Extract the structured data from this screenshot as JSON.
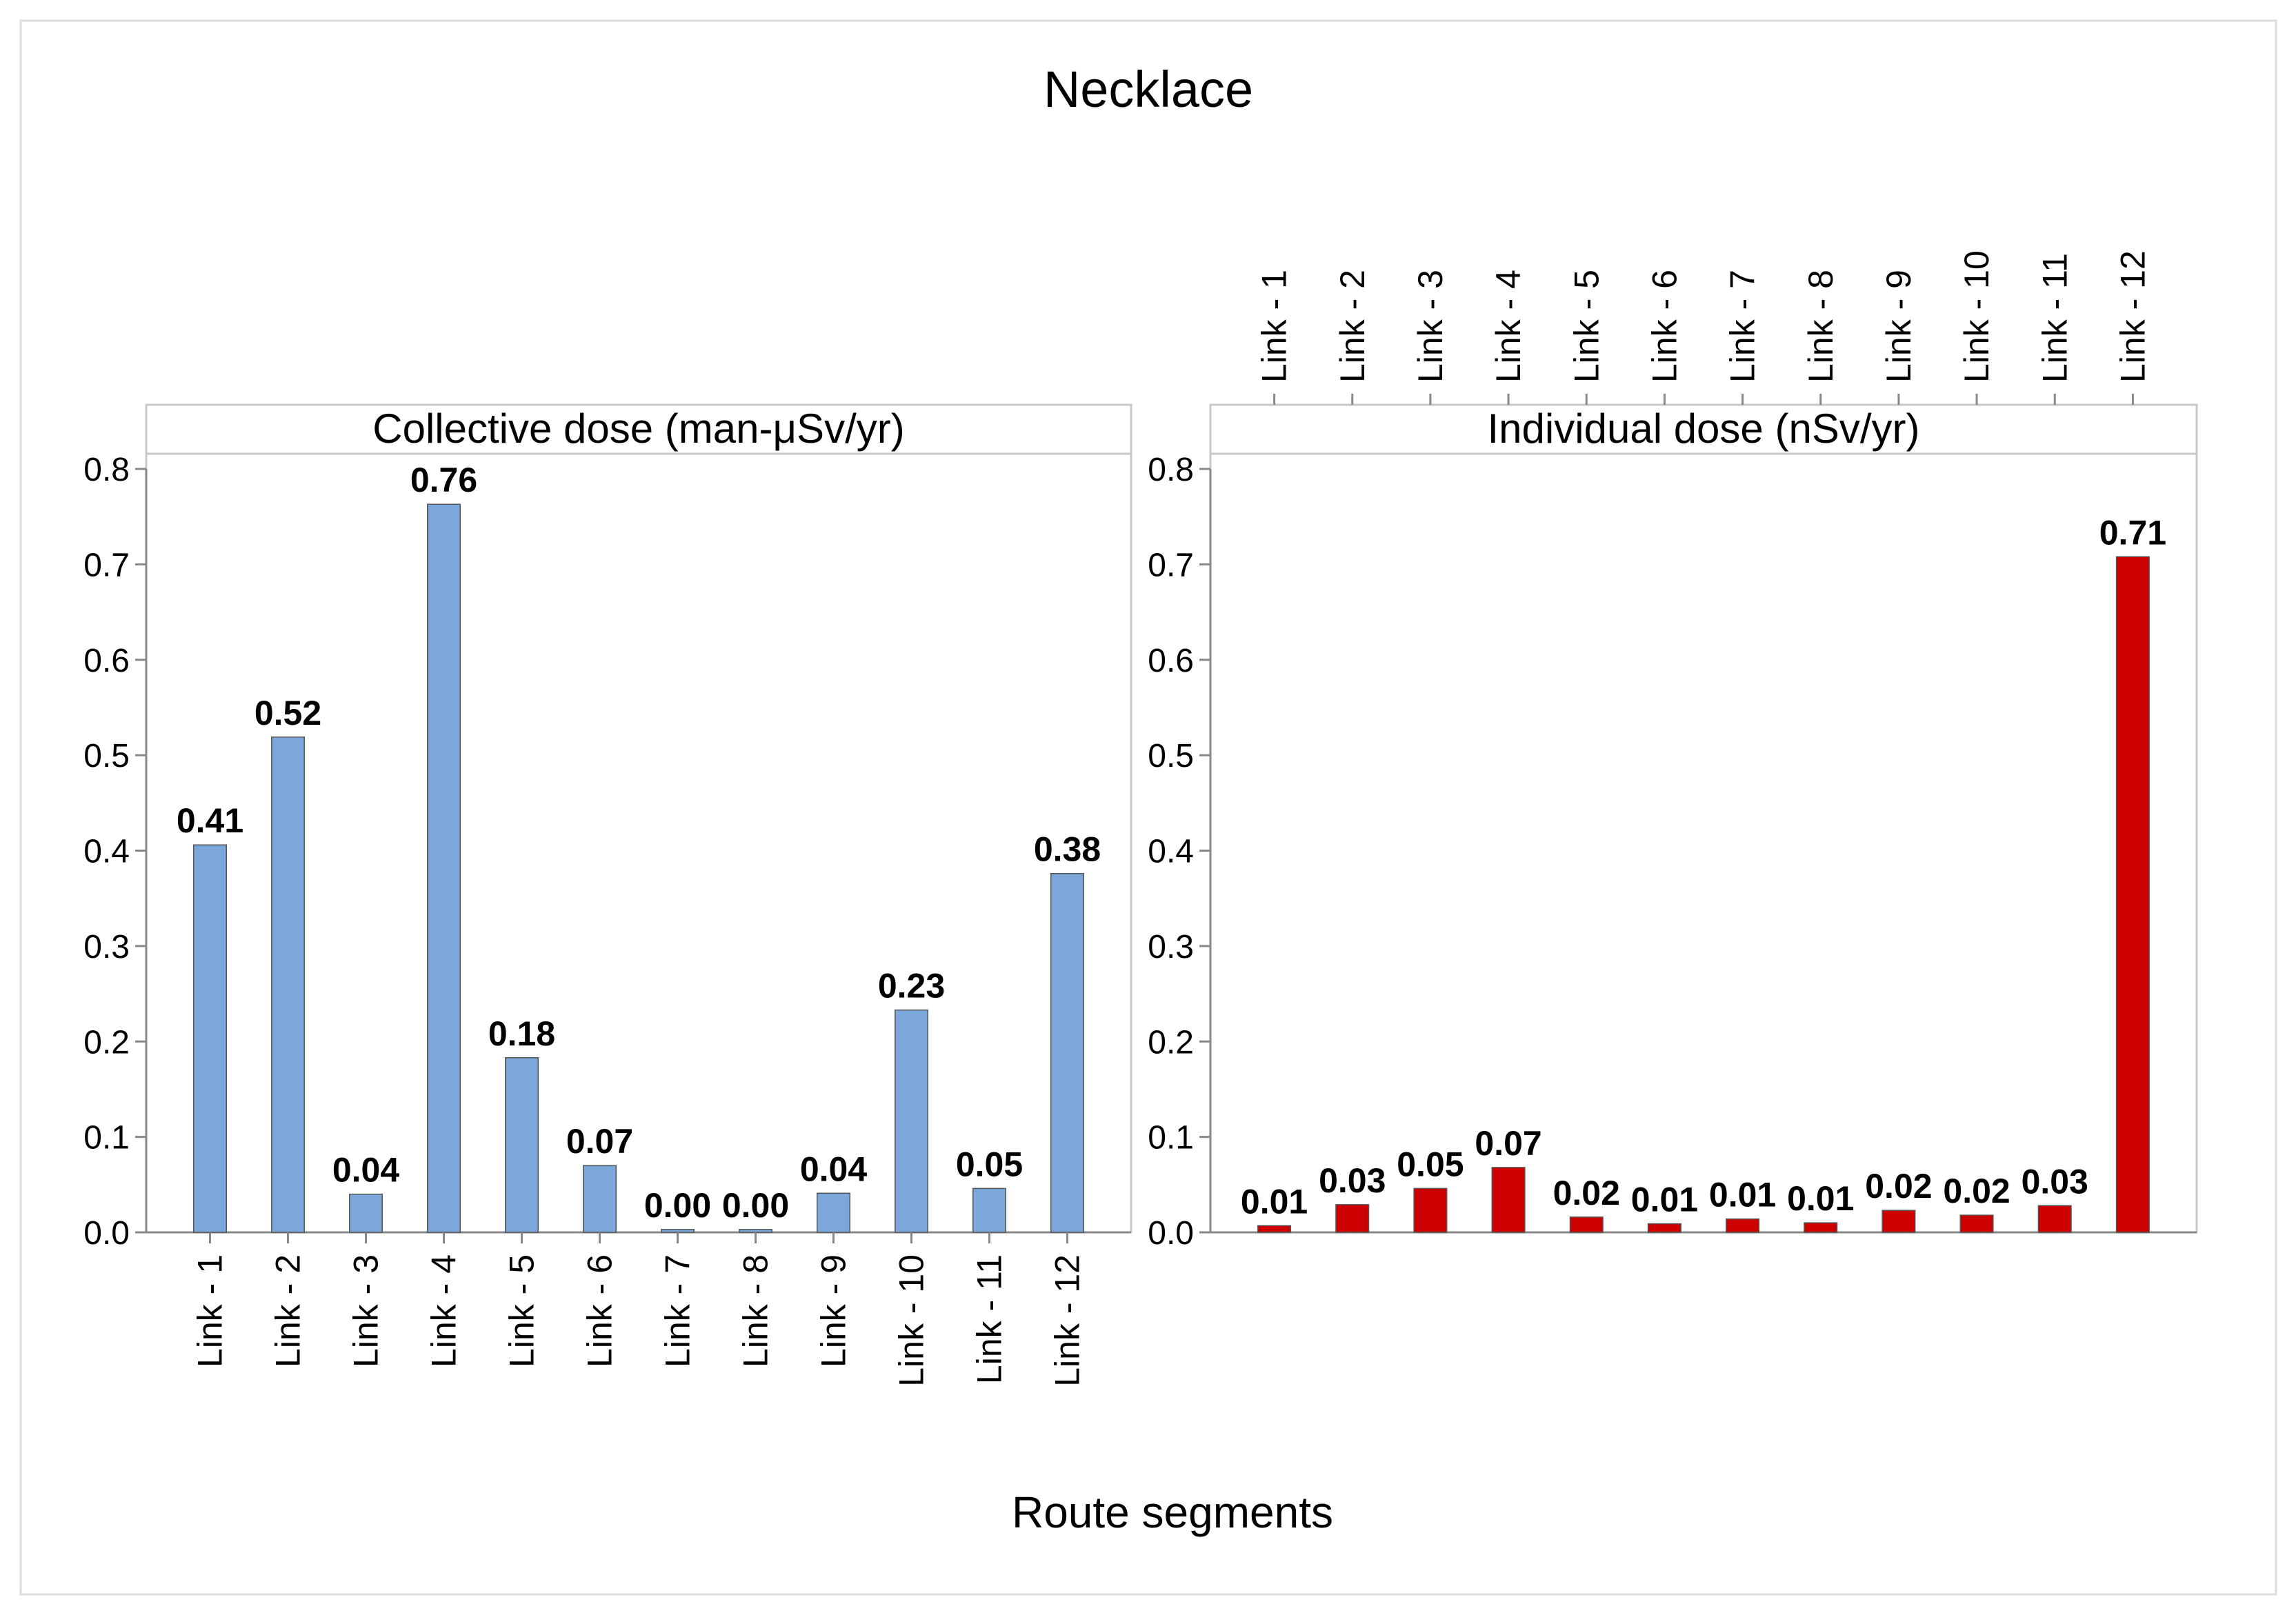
{
  "chart_data": {
    "type": "bar",
    "title": "Necklace",
    "xlabel": "Route segments",
    "categories": [
      "Link - 1",
      "Link - 2",
      "Link - 3",
      "Link - 4",
      "Link - 5",
      "Link - 6",
      "Link - 7",
      "Link - 8",
      "Link - 9",
      "Link - 10",
      "Link - 11",
      "Link - 12"
    ],
    "ylim": [
      0,
      0.8
    ],
    "yticks": [
      "0.0",
      "0.1",
      "0.2",
      "0.3",
      "0.4",
      "0.5",
      "0.6",
      "0.7",
      "0.8"
    ],
    "panels": [
      {
        "name": "Collective dose (man-μSv/yr)",
        "values": [
          0.406,
          0.519,
          0.04,
          0.763,
          0.183,
          0.07,
          0.003,
          0.003,
          0.041,
          0.233,
          0.046,
          0.376
        ],
        "labels": [
          "0.41",
          "0.52",
          "0.04",
          "0.76",
          "0.18",
          "0.07",
          "0.00",
          "0.00",
          "0.04",
          "0.23",
          "0.05",
          "0.38"
        ],
        "color": "#7BA7DA",
        "category_axis": "bottom"
      },
      {
        "name": "Individual dose (nSv/yr)",
        "values": [
          0.007,
          0.029,
          0.046,
          0.068,
          0.016,
          0.009,
          0.014,
          0.01,
          0.023,
          0.018,
          0.028,
          0.708
        ],
        "labels": [
          "0.01",
          "0.03",
          "0.05",
          "0.07",
          "0.02",
          "0.01",
          "0.01",
          "0.01",
          "0.02",
          "0.02",
          "0.03",
          "0.71"
        ],
        "color": "#CC0000",
        "category_axis": "top"
      }
    ]
  },
  "colors": {
    "frame": "#c8c8c8",
    "strip_bg": "#ffffff",
    "axis": "#888888"
  }
}
